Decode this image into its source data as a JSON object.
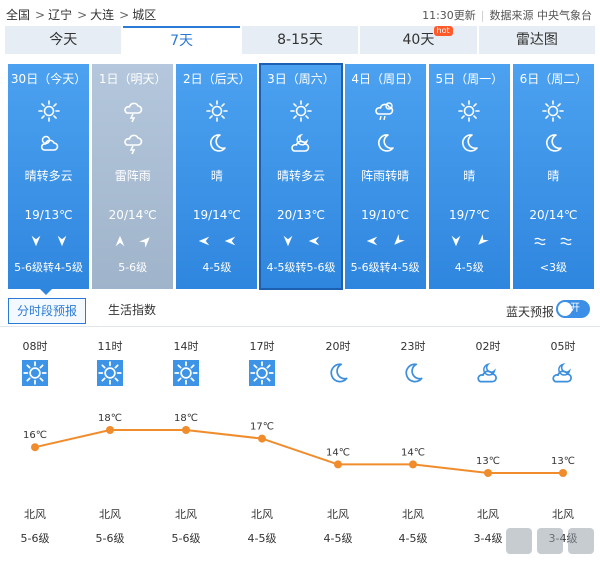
{
  "breadcrumb": [
    "全国",
    "辽宁",
    "大连",
    "城区"
  ],
  "breadcrumb_sep": ">",
  "meta": {
    "updated": "11:30更新",
    "source": "数据来源 中央气象台"
  },
  "tabs": [
    {
      "label": "今天"
    },
    {
      "label": "7天"
    },
    {
      "label": "8-15天"
    },
    {
      "label": "40天",
      "badge": "hot"
    },
    {
      "label": "雷达图"
    }
  ],
  "days": [
    {
      "date": "30日（今天）",
      "icon1": "sun",
      "icon2": "partly-cloudy",
      "desc": "晴转多云",
      "temp": "19/13℃",
      "wind1": "north",
      "wind2": "north",
      "level": "5-6级转4-5级"
    },
    {
      "date": "1日（明天）",
      "icon1": "thunder",
      "icon2": "thunder",
      "desc": "雷阵雨",
      "temp": "20/14℃",
      "wind1": "south",
      "wind2": "southwest",
      "level": "5-6级"
    },
    {
      "date": "2日（后天）",
      "icon1": "sun",
      "icon2": "moon",
      "desc": "晴",
      "temp": "19/14℃",
      "wind1": "east",
      "wind2": "east",
      "level": "4-5级"
    },
    {
      "date": "3日（周六）",
      "icon1": "sun",
      "icon2": "partly-cloudy-night",
      "desc": "晴转多云",
      "temp": "20/13℃",
      "wind1": "north",
      "wind2": "east",
      "level": "4-5级转5-6级"
    },
    {
      "date": "4日（周日）",
      "icon1": "shower",
      "icon2": "moon",
      "desc": "阵雨转晴",
      "temp": "19/10℃",
      "wind1": "east",
      "wind2": "northeast",
      "level": "5-6级转4-5级"
    },
    {
      "date": "5日（周一）",
      "icon1": "sun",
      "icon2": "moon",
      "desc": "晴",
      "temp": "19/7℃",
      "wind1": "north",
      "wind2": "northeast",
      "level": "4-5级"
    },
    {
      "date": "6日（周二）",
      "icon1": "sun",
      "icon2": "moon",
      "desc": "晴",
      "temp": "20/14℃",
      "wind1": "calm",
      "wind2": "calm",
      "level": "<3级"
    }
  ],
  "subtabs": [
    "分时段预报",
    "生活指数"
  ],
  "toggle": {
    "label": "蓝天预报",
    "state": "开"
  },
  "chart_data": {
    "type": "line",
    "x": [
      "08时",
      "11时",
      "14时",
      "17时",
      "20时",
      "23时",
      "02时",
      "05时"
    ],
    "values": [
      16,
      18,
      18,
      17,
      14,
      14,
      13,
      13
    ],
    "value_labels": [
      "16℃",
      "18℃",
      "18℃",
      "17℃",
      "14℃",
      "14℃",
      "13℃",
      "13℃"
    ],
    "icons": [
      "sun-box",
      "sun-box",
      "sun-box",
      "sun-box",
      "moon",
      "moon",
      "partly-cloudy-night",
      "partly-cloudy-night"
    ],
    "wind_dir": [
      "北风",
      "北风",
      "北风",
      "北风",
      "北风",
      "北风",
      "北风",
      "北风"
    ],
    "wind_level": [
      "5-6级",
      "5-6级",
      "5-6级",
      "4-5级",
      "4-5级",
      "4-5级",
      "3-4级",
      "3-4级"
    ],
    "color": "#f08c2c"
  },
  "colors": {
    "accent": "#2b7ad6",
    "card": "#3b92e8",
    "today_card": "#a9bdd3",
    "line": "#f08c2c"
  }
}
